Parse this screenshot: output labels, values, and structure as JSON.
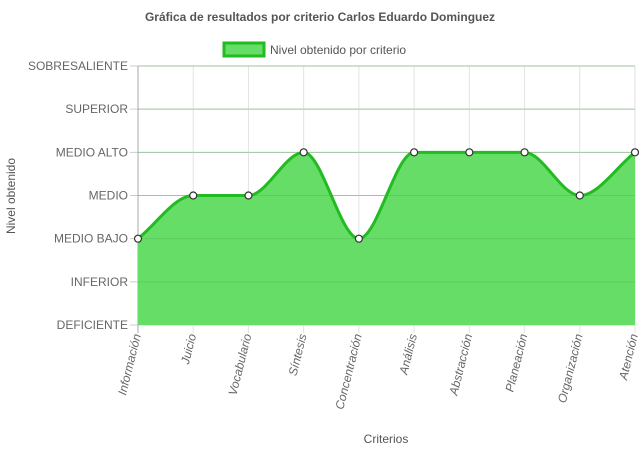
{
  "chart_data": {
    "type": "area",
    "title": "Gráfica de resultados por criterio Carlos Eduardo Dominguez",
    "xlabel": "Criterios",
    "ylabel": "Nivel obtenido",
    "y_levels": [
      "DEFICIENTE",
      "INFERIOR",
      "MEDIO BAJO",
      "MEDIO",
      "MEDIO ALTO",
      "SUPERIOR",
      "SOBRESALIENTE"
    ],
    "ylim": [
      0,
      6
    ],
    "categories": [
      "Información",
      "Juicio",
      "Vocabulario",
      "Síntesis",
      "Concentración",
      "Análisis",
      "Abstracción",
      "Planeación",
      "Organización",
      "Atención"
    ],
    "series": [
      {
        "name": "Nivel obtenido por criterio",
        "values": [
          2,
          3,
          3,
          4,
          2,
          4,
          4,
          4,
          3,
          4
        ],
        "values_as_levels": [
          "MEDIO BAJO",
          "MEDIO",
          "MEDIO",
          "MEDIO ALTO",
          "MEDIO BAJO",
          "MEDIO ALTO",
          "MEDIO ALTO",
          "MEDIO ALTO",
          "MEDIO",
          "MEDIO ALTO"
        ],
        "fill_color": "#66dd66",
        "line_color": "#22bb22"
      }
    ],
    "legend_position": "top-center",
    "grid": true,
    "smooth": true
  }
}
